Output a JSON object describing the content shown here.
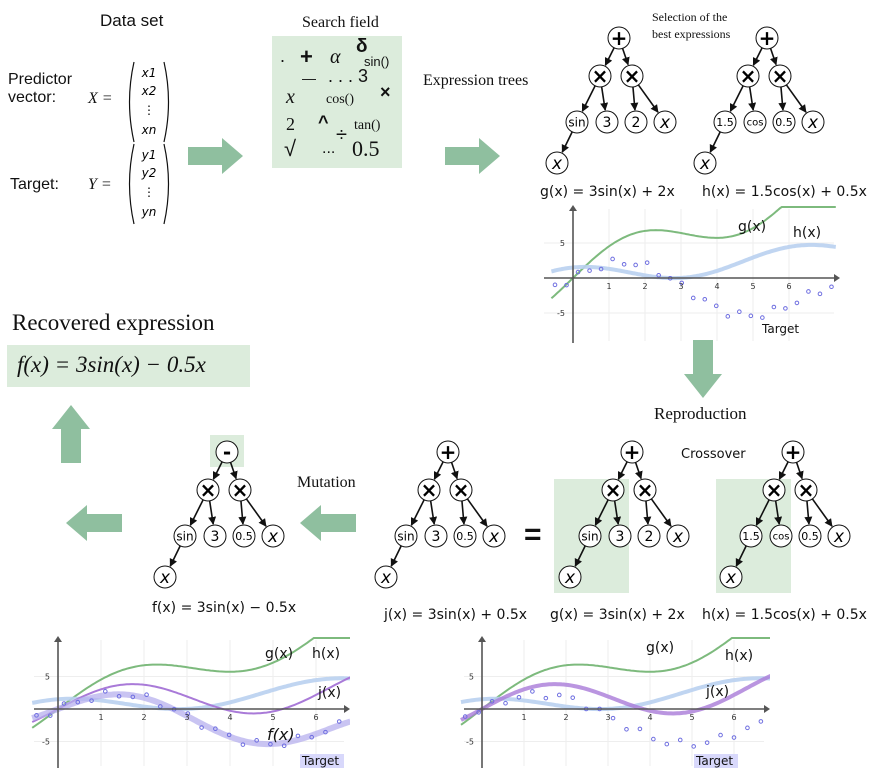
{
  "data_set": {
    "title": "Data set",
    "predictor_label_1": "Predictor",
    "predictor_label_2": "vector:",
    "predictor_symbol": "X =",
    "predictor_entries": [
      "x1",
      "x2",
      "⋮",
      "xn"
    ],
    "target_label": "Target:",
    "target_symbol": "Y =",
    "target_entries": [
      "y1",
      "y2",
      "⋮",
      "yn"
    ]
  },
  "search_field": {
    "title": "Search field",
    "symbols": [
      ".",
      "+",
      "α",
      "δ",
      "sin()",
      "—",
      ". . . 3",
      "x",
      "cos()",
      "×",
      "2",
      "^",
      "÷",
      "tan()",
      "√",
      "...",
      "0.5"
    ]
  },
  "expression_trees": {
    "title": "Expression trees",
    "selection_title_1": "Selection of the",
    "selection_title_2": "best expressions",
    "g_formula": "g(x) = 3sin(x) + 2x",
    "h_formula": "h(x) = 1.5cos(x) + 0.5x"
  },
  "top_plot": {
    "g_label": "g(x)",
    "h_label": "h(x)",
    "target_label": "Target",
    "ticks_x": [
      "1",
      "2",
      "3",
      "4",
      "5",
      "6"
    ],
    "ticks_y": [
      "5",
      "-5"
    ]
  },
  "recovered": {
    "title": "Recovered expression",
    "formula": "f(x) = 3sin(x) − 0.5x"
  },
  "reproduction": {
    "title": "Reproduction",
    "crossover_label": "Crossover",
    "equals": "="
  },
  "mutation": {
    "title": "Mutation"
  },
  "formulas": {
    "f": "f(x) = 3sin(x) − 0.5x",
    "j": "j(x) = 3sin(x) + 0.5x",
    "g": "g(x) = 3sin(x) + 2x",
    "h": "h(x) = 1.5cos(x) + 0.5x"
  },
  "bottom_left_plot": {
    "g_label": "g(x)",
    "h_label": "h(x)",
    "j_label": "j(x)",
    "f_label": "f(x)",
    "target_label": "Target",
    "ticks_x": [
      "1",
      "2",
      "3",
      "4",
      "5",
      "6"
    ],
    "ticks_y": [
      "5",
      "-5"
    ]
  },
  "bottom_right_plot": {
    "g_label": "g(x)",
    "h_label": "h(x)",
    "j_label": "j(x)",
    "target_label": "Target",
    "ticks_x": [
      "1",
      "2",
      "3",
      "4",
      "5",
      "6"
    ],
    "ticks_y": [
      "5",
      "-5"
    ]
  },
  "tree_nodes": {
    "plus": "+",
    "minus": "-",
    "times": "×",
    "sin": "sin",
    "cos": "cos",
    "three": "3",
    "two": "2",
    "x": "x",
    "half": "0.5",
    "one_half": "1.5"
  },
  "colors": {
    "panel_green": "#dcecdc",
    "arrow_green": "#8fbf9f",
    "g_curve": "#7dba7d",
    "h_curve": "#a9c3ea",
    "j_curve": "#a97ad8",
    "f_curve": "#b7b0ee",
    "target_points": "#6e6ee0"
  }
}
